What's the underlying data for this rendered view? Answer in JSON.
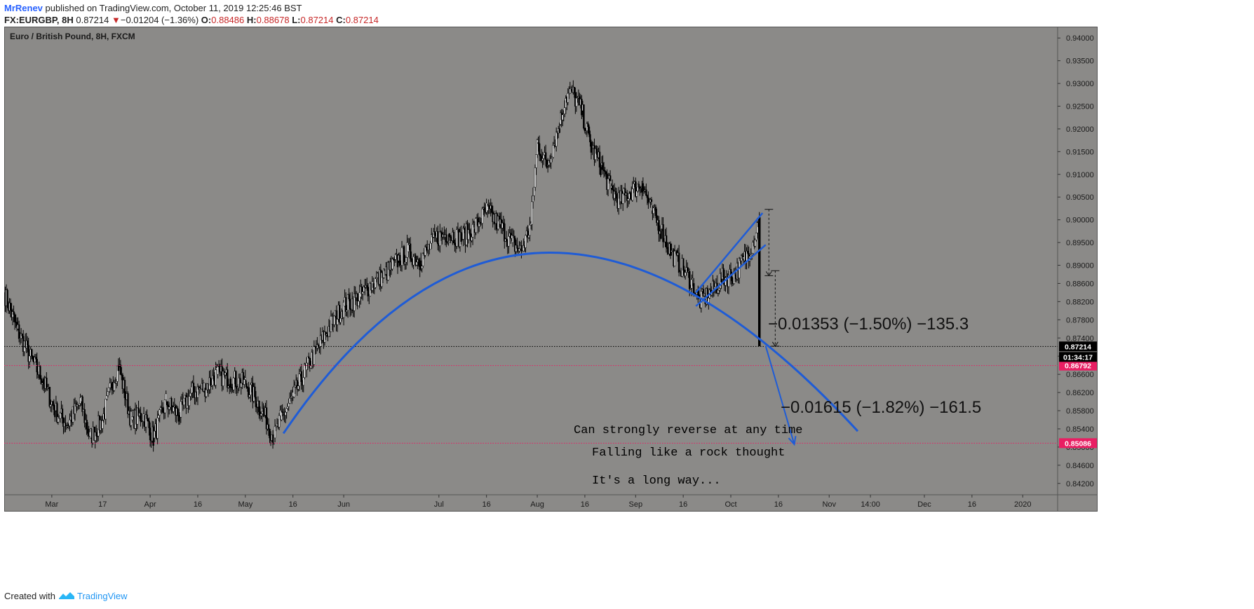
{
  "header": {
    "author": "MrRenev",
    "published": "published on TradingView.com, October 11, 2019 12:25:46 BST",
    "symbol": "FX:EURGBP, 8H",
    "last": "0.87214",
    "change": "−0.01204 (−1.36%)",
    "o_label": "O:",
    "o_val": "0.88486",
    "h_label": "H:",
    "h_val": "0.88678",
    "l_label": "L:",
    "l_val": "0.87214",
    "c_label": "C:",
    "c_val": "0.87214"
  },
  "footer": {
    "created_with": "Created with",
    "brand": "TradingView"
  },
  "colors": {
    "plot_bg": "#8b8a88",
    "accent_blue": "#1f5cd6",
    "marker_pink": "#e91e63",
    "candle": "#000000"
  },
  "chart_data": {
    "type": "candlestick",
    "title": "Euro / British Pound, 8H, FXCM",
    "y_range": [
      0.8395,
      0.9425
    ],
    "y_ticks": [
      "0.94000",
      "0.93500",
      "0.93000",
      "0.92500",
      "0.92000",
      "0.91500",
      "0.91000",
      "0.90500",
      "0.90000",
      "0.89500",
      "0.89000",
      "0.88600",
      "0.88200",
      "0.87800",
      "0.87400",
      "0.87000",
      "0.86600",
      "0.86200",
      "0.85800",
      "0.85400",
      "0.85000",
      "0.84600",
      "0.84200"
    ],
    "x_range": [
      "2019-02-14",
      "2020-01-12"
    ],
    "x_ticks": [
      {
        "label": "Mar",
        "date": "2019-03-01"
      },
      {
        "label": "17",
        "date": "2019-03-17"
      },
      {
        "label": "Apr",
        "date": "2019-04-01"
      },
      {
        "label": "16",
        "date": "2019-04-16"
      },
      {
        "label": "May",
        "date": "2019-05-01"
      },
      {
        "label": "16",
        "date": "2019-05-16"
      },
      {
        "label": "Jun",
        "date": "2019-06-01"
      },
      {
        "label": "Jul",
        "date": "2019-07-01"
      },
      {
        "label": "16",
        "date": "2019-07-16"
      },
      {
        "label": "Aug",
        "date": "2019-08-01"
      },
      {
        "label": "16",
        "date": "2019-08-16"
      },
      {
        "label": "Sep",
        "date": "2019-09-01"
      },
      {
        "label": "16",
        "date": "2019-09-16"
      },
      {
        "label": "Oct",
        "date": "2019-10-01"
      },
      {
        "label": "16",
        "date": "2019-10-16"
      },
      {
        "label": "Nov",
        "date": "2019-11-01"
      },
      {
        "label": "14:00",
        "date": "2019-11-14"
      },
      {
        "label": "Dec",
        "date": "2019-12-01"
      },
      {
        "label": "16",
        "date": "2019-12-16"
      },
      {
        "label": "2020",
        "date": "2020-01-01"
      }
    ],
    "price_path": [
      [
        "2019-02-14",
        0.884
      ],
      [
        "2019-02-18",
        0.876
      ],
      [
        "2019-02-22",
        0.87
      ],
      [
        "2019-02-26",
        0.865
      ],
      [
        "2019-03-02",
        0.858
      ],
      [
        "2019-03-06",
        0.855
      ],
      [
        "2019-03-10",
        0.86
      ],
      [
        "2019-03-13",
        0.852
      ],
      [
        "2019-03-17",
        0.856
      ],
      [
        "2019-03-20",
        0.864
      ],
      [
        "2019-03-22",
        0.868
      ],
      [
        "2019-03-26",
        0.856
      ],
      [
        "2019-03-30",
        0.857
      ],
      [
        "2019-04-02",
        0.852
      ],
      [
        "2019-04-06",
        0.86
      ],
      [
        "2019-04-10",
        0.857
      ],
      [
        "2019-04-14",
        0.862
      ],
      [
        "2019-04-18",
        0.863
      ],
      [
        "2019-04-22",
        0.866
      ],
      [
        "2019-04-26",
        0.865
      ],
      [
        "2019-05-01",
        0.864
      ],
      [
        "2019-05-04",
        0.861
      ],
      [
        "2019-05-07",
        0.857
      ],
      [
        "2019-05-10",
        0.852
      ],
      [
        "2019-05-12",
        0.856
      ],
      [
        "2019-05-16",
        0.861
      ],
      [
        "2019-05-20",
        0.867
      ],
      [
        "2019-05-24",
        0.872
      ],
      [
        "2019-05-28",
        0.877
      ],
      [
        "2019-06-01",
        0.881
      ],
      [
        "2019-06-06",
        0.883
      ],
      [
        "2019-06-10",
        0.886
      ],
      [
        "2019-06-14",
        0.888
      ],
      [
        "2019-06-18",
        0.891
      ],
      [
        "2019-06-21",
        0.893
      ],
      [
        "2019-06-25",
        0.891
      ],
      [
        "2019-06-30",
        0.896
      ],
      [
        "2019-07-04",
        0.897
      ],
      [
        "2019-07-08",
        0.896
      ],
      [
        "2019-07-12",
        0.898
      ],
      [
        "2019-07-16",
        0.902
      ],
      [
        "2019-07-20",
        0.899
      ],
      [
        "2019-07-24",
        0.895
      ],
      [
        "2019-07-27",
        0.893
      ],
      [
        "2019-07-30",
        0.899
      ],
      [
        "2019-08-01",
        0.917
      ],
      [
        "2019-08-04",
        0.912
      ],
      [
        "2019-08-08",
        0.921
      ],
      [
        "2019-08-10",
        0.927
      ],
      [
        "2019-08-12",
        0.928
      ],
      [
        "2019-08-15",
        0.924
      ],
      [
        "2019-08-18",
        0.916
      ],
      [
        "2019-08-21",
        0.912
      ],
      [
        "2019-08-24",
        0.907
      ],
      [
        "2019-08-27",
        0.904
      ],
      [
        "2019-08-30",
        0.906
      ],
      [
        "2019-09-03",
        0.908
      ],
      [
        "2019-09-06",
        0.902
      ],
      [
        "2019-09-09",
        0.898
      ],
      [
        "2019-09-12",
        0.893
      ],
      [
        "2019-09-16",
        0.889
      ],
      [
        "2019-09-19",
        0.886
      ],
      [
        "2019-09-21",
        0.882
      ],
      [
        "2019-09-25",
        0.884
      ],
      [
        "2019-09-28",
        0.887
      ],
      [
        "2019-10-02",
        0.888
      ],
      [
        "2019-10-05",
        0.891
      ],
      [
        "2019-10-08",
        0.895
      ],
      [
        "2019-10-10",
        0.9005
      ],
      [
        "2019-10-11",
        0.8722
      ]
    ],
    "price_range": {
      "low": 0.8475,
      "high": 0.9325
    },
    "annotations": {
      "arc": {
        "x1": "2019-05-13",
        "y1": 0.853,
        "cx": "2019-07-29",
        "cy": 0.9323,
        "x2": "2019-11-10",
        "y2": 0.8535
      },
      "channel_lower": {
        "x1": "2019-09-20",
        "y1": 0.881,
        "x2": "2019-10-12",
        "y2": 0.8945
      },
      "channel_upper": {
        "x1": "2019-09-20",
        "y1": 0.884,
        "x2": "2019-10-11",
        "y2": 0.9015
      },
      "measure_1": {
        "text": "−0.01353 (−1.50%) −135.3",
        "x": "2019-10-13",
        "y1": 0.9023,
        "y2": 0.8877
      },
      "measure_2": {
        "text": "−0.01615 (−1.82%) −161.5",
        "x": "2019-10-15",
        "y1": 0.8888,
        "y2": 0.8722
      },
      "arrow": {
        "x1": "2019-10-12",
        "y1": 0.8722,
        "x2": "2019-10-21",
        "y2": 0.8506
      },
      "notes": [
        "Can strongly reverse at any time",
        "Falling like a rock thought",
        "It's a long way..."
      ]
    },
    "horizontal_lines": [
      {
        "price": 0.87214,
        "label": "0.87214",
        "style": "dotted-black"
      },
      {
        "price": 0.86792,
        "label": "0.86792",
        "style": "dotted-pink"
      },
      {
        "price": 0.85086,
        "label": "0.85086",
        "style": "dotted-pink"
      }
    ],
    "countdown": "01:34:17",
    "grid": false,
    "legend": "none"
  }
}
